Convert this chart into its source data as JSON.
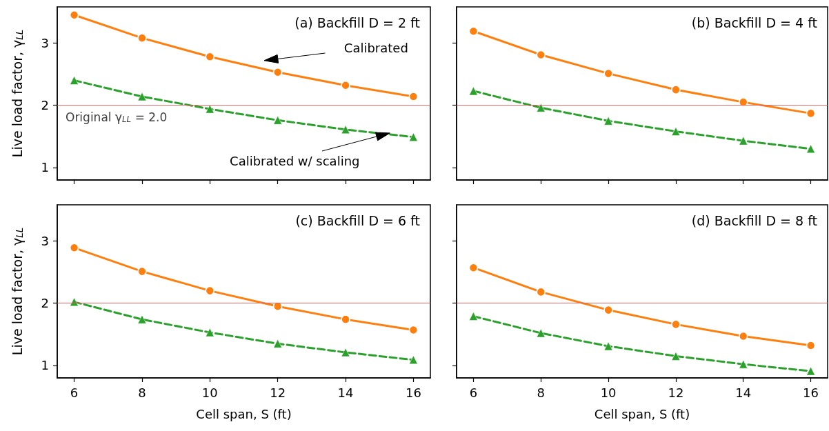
{
  "chart_data": [
    {
      "type": "line",
      "title": "(a) Backfill D = 2 ft",
      "ylabel": "Live load factor, γ$_{LL}$",
      "x": [
        6,
        8,
        10,
        12,
        14,
        16
      ],
      "xlim": [
        5.5,
        16.5
      ],
      "ylim": [
        0.8,
        3.58
      ],
      "xticks": [
        6,
        8,
        10,
        12,
        14,
        16
      ],
      "yticks": [
        1,
        2,
        3
      ],
      "tick_labels": "y",
      "series": [
        {
          "color": "#ff7f0e",
          "marker": "circle",
          "line_style": "solid",
          "values": [
            3.45,
            3.08,
            2.78,
            2.53,
            2.32,
            2.14
          ]
        },
        {
          "color": "#2ca02c",
          "marker": "triangle",
          "line_style": "dashed",
          "values": [
            2.4,
            2.14,
            1.94,
            1.76,
            1.61,
            1.49
          ]
        }
      ],
      "ref_lines": [
        {
          "axis": "y",
          "value": 2,
          "label": "Original γ$_{LL}$ = 2.0",
          "color": "#e06666"
        }
      ],
      "annotations": [
        "Calibrated",
        "Calibrated w/ scaling"
      ]
    },
    {
      "type": "line",
      "title": "(b) Backfill D = 4 ft",
      "x": [
        6,
        8,
        10,
        12,
        14,
        16
      ],
      "xlim": [
        5.5,
        16.5
      ],
      "ylim": [
        0.8,
        3.58
      ],
      "xticks": [
        6,
        8,
        10,
        12,
        14,
        16
      ],
      "yticks": [
        1,
        2,
        3
      ],
      "tick_labels": false,
      "series": [
        {
          "color": "#ff7f0e",
          "marker": "circle",
          "line_style": "solid",
          "values": [
            3.19,
            2.81,
            2.51,
            2.25,
            2.05,
            1.87
          ]
        },
        {
          "color": "#2ca02c",
          "marker": "triangle",
          "line_style": "dashed",
          "values": [
            2.23,
            1.96,
            1.75,
            1.58,
            1.43,
            1.3
          ]
        }
      ],
      "ref_lines": [
        {
          "axis": "y",
          "value": 2,
          "color": "#e06666"
        }
      ]
    },
    {
      "type": "line",
      "title": "(c) Backfill D = 6 ft",
      "xlabel": "Cell span, S (ft)",
      "ylabel": "Live load factor, γ$_{LL}$",
      "x": [
        6,
        8,
        10,
        12,
        14,
        16
      ],
      "xlim": [
        5.5,
        16.5
      ],
      "ylim": [
        0.8,
        3.58
      ],
      "xticks": [
        6,
        8,
        10,
        12,
        14,
        16
      ],
      "yticks": [
        1,
        2,
        3
      ],
      "series": [
        {
          "color": "#ff7f0e",
          "marker": "circle",
          "line_style": "solid",
          "values": [
            2.89,
            2.51,
            2.2,
            1.95,
            1.74,
            1.57
          ]
        },
        {
          "color": "#2ca02c",
          "marker": "triangle",
          "line_style": "dashed",
          "values": [
            2.02,
            1.74,
            1.53,
            1.35,
            1.21,
            1.09
          ]
        }
      ],
      "ref_lines": [
        {
          "axis": "y",
          "value": 2,
          "color": "#e06666"
        }
      ]
    },
    {
      "type": "line",
      "title": "(d) Backfill D = 8 ft",
      "xlabel": "Cell span, S (ft)",
      "x": [
        6,
        8,
        10,
        12,
        14,
        16
      ],
      "xlim": [
        5.5,
        16.5
      ],
      "ylim": [
        0.8,
        3.58
      ],
      "xticks": [
        6,
        8,
        10,
        12,
        14,
        16
      ],
      "yticks": [
        1,
        2,
        3
      ],
      "tick_labels": "x",
      "series": [
        {
          "color": "#ff7f0e",
          "marker": "circle",
          "line_style": "solid",
          "values": [
            2.57,
            2.18,
            1.89,
            1.66,
            1.47,
            1.32
          ]
        },
        {
          "color": "#2ca02c",
          "marker": "triangle",
          "line_style": "dashed",
          "values": [
            1.79,
            1.52,
            1.31,
            1.15,
            1.02,
            0.91
          ]
        }
      ],
      "ref_lines": [
        {
          "axis": "y",
          "value": 2,
          "color": "#e06666"
        }
      ]
    }
  ]
}
